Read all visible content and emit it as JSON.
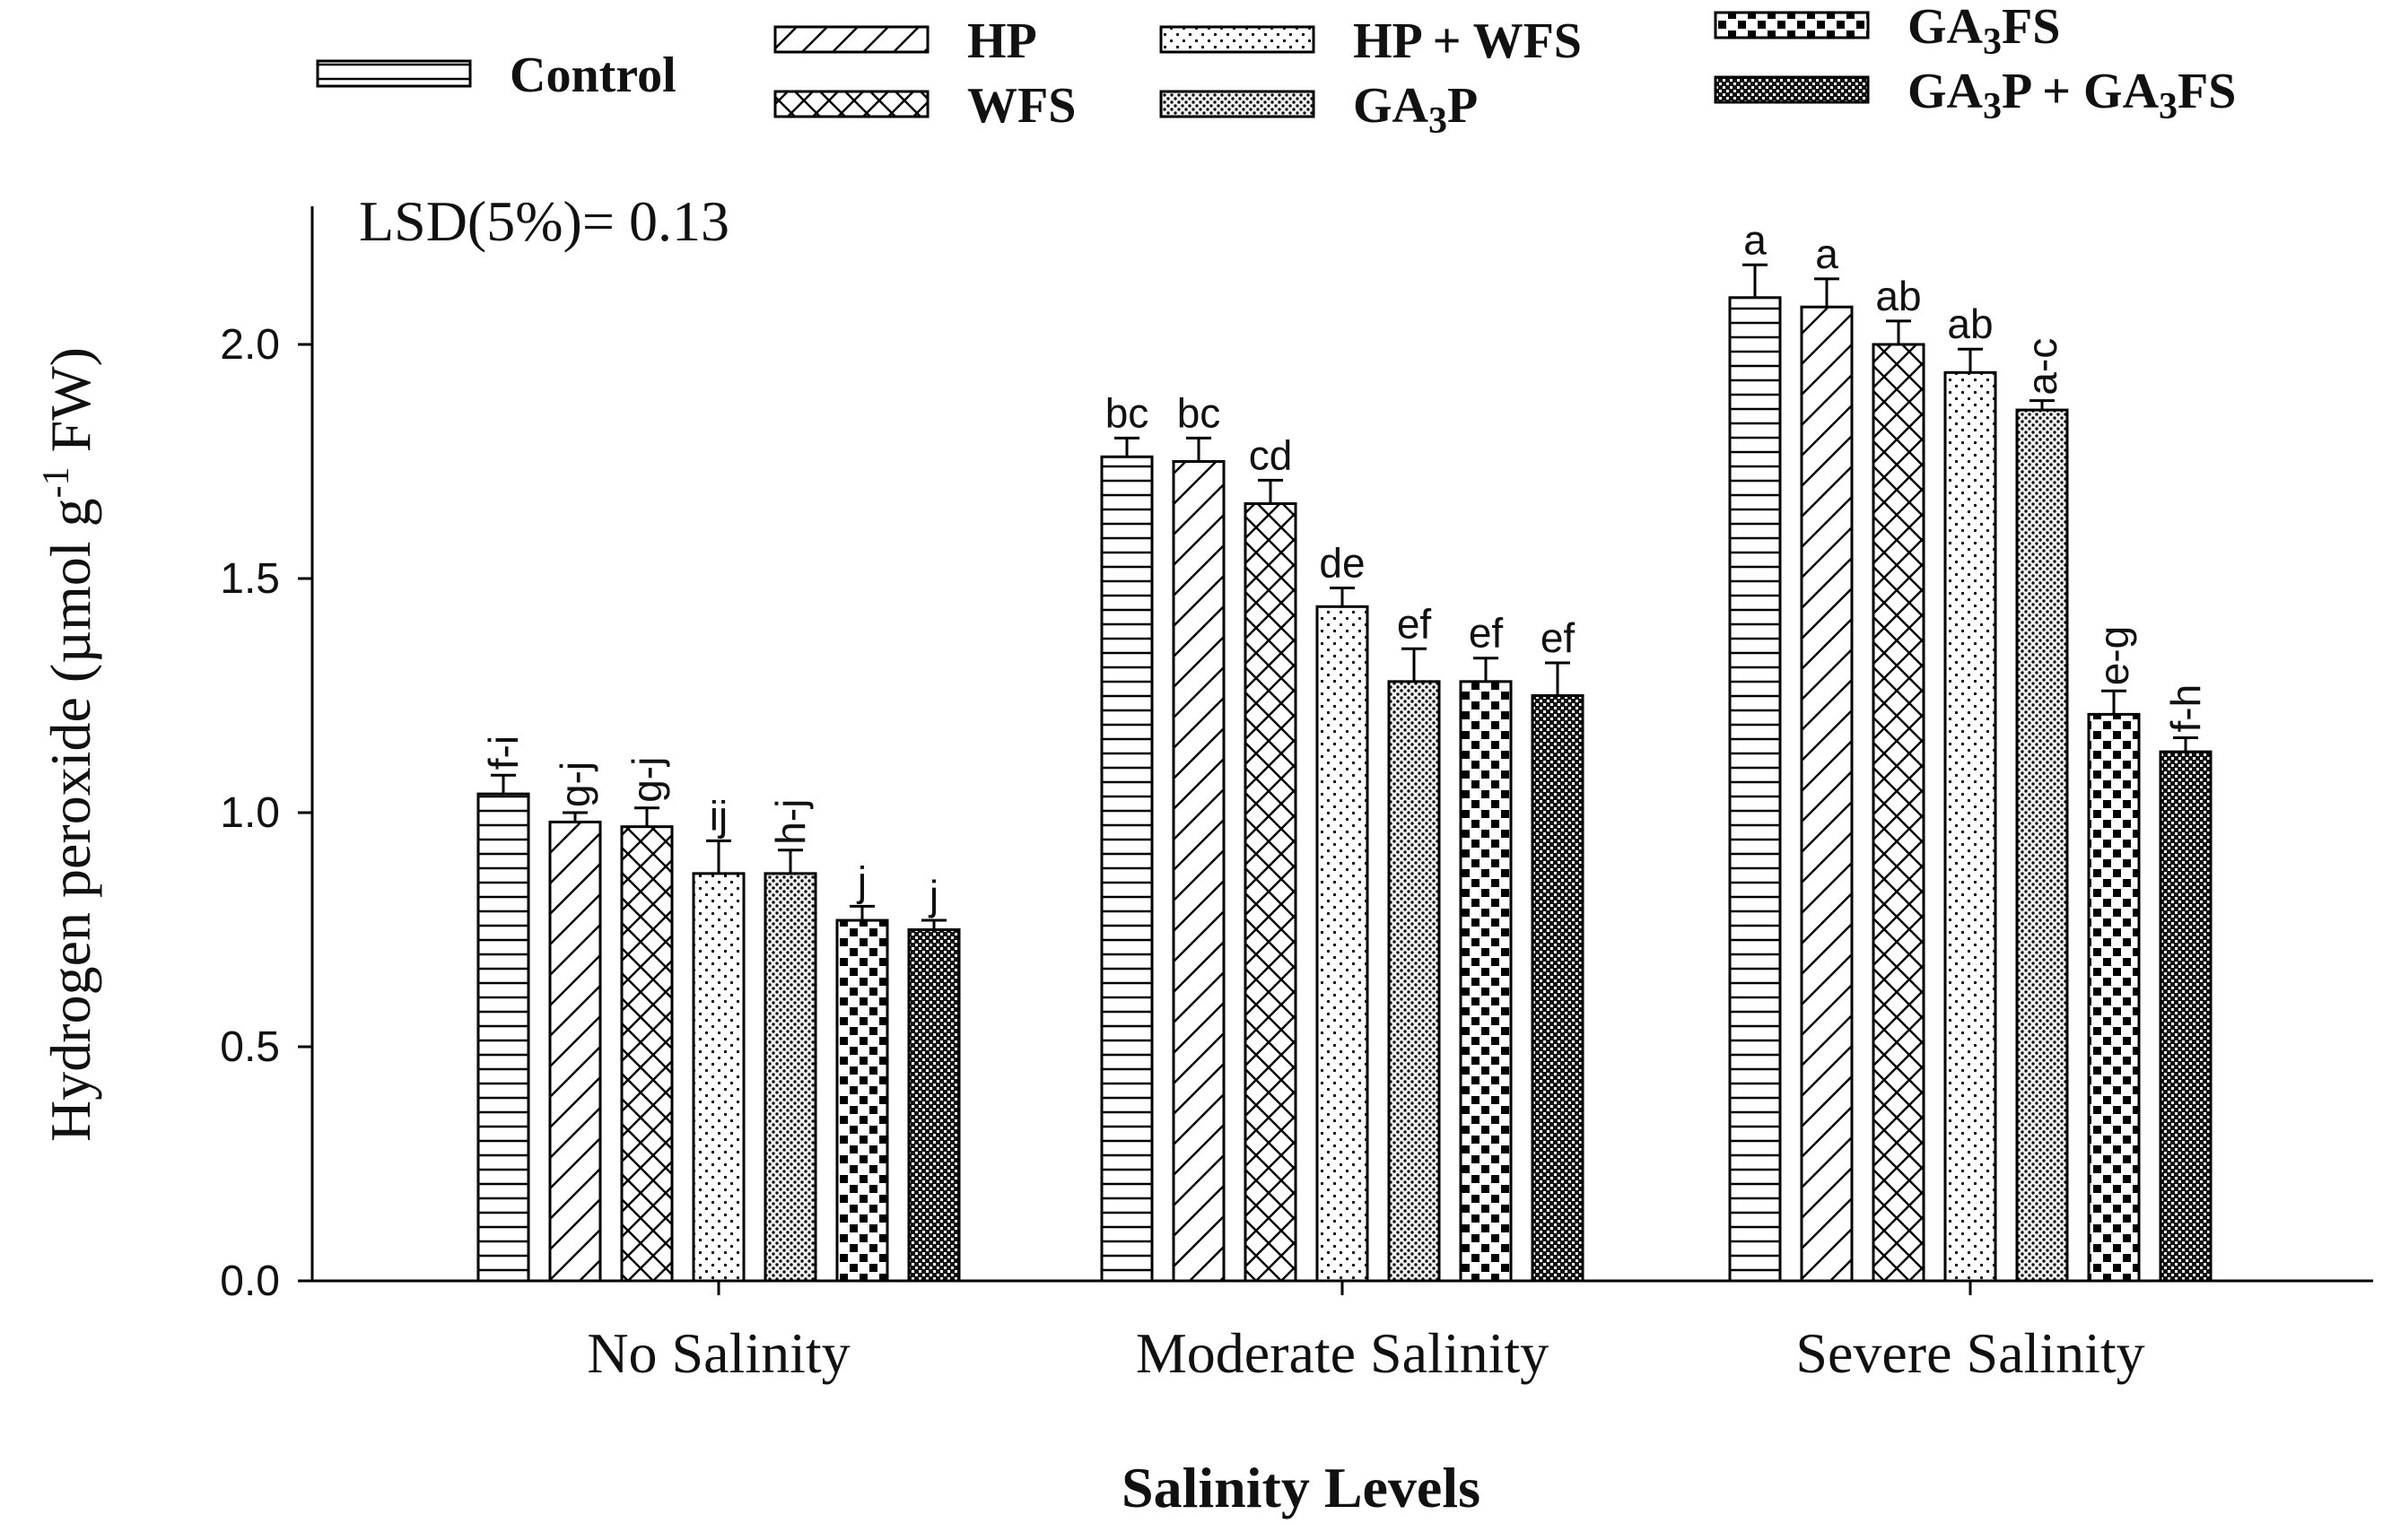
{
  "chart_data": {
    "type": "bar",
    "title": "",
    "annotation": "LSD(5%)= 0.13",
    "xlabel": "Salinity Levels",
    "ylabel": "Hydrogen peroxide (µmol g-1 FW)",
    "ylabel_parts": {
      "main": "Hydrogen peroxide (µmol g",
      "sup": "-1",
      "tail": " FW)"
    },
    "ylim": [
      0,
      2.2
    ],
    "yticks": [
      0.0,
      0.5,
      1.0,
      1.5,
      2.0
    ],
    "ytick_labels": [
      "0.0",
      "0.5",
      "1.0",
      "1.5",
      "2.0"
    ],
    "categories": [
      "No Salinity",
      "Moderate Salinity",
      "Severe Salinity"
    ],
    "series": [
      {
        "name": "Control",
        "legend": {
          "main": "Control",
          "parts": []
        },
        "pattern": "hstripes",
        "values": [
          1.04,
          1.76,
          2.1
        ],
        "errors": [
          0.04,
          0.04,
          0.07
        ],
        "letters": [
          "f-i",
          "bc",
          "a"
        ]
      },
      {
        "name": "HP",
        "legend": {
          "main": "HP",
          "parts": []
        },
        "pattern": "diag",
        "values": [
          0.98,
          1.75,
          2.08
        ],
        "errors": [
          0.02,
          0.05,
          0.06
        ],
        "letters": [
          "g-j",
          "bc",
          "a"
        ]
      },
      {
        "name": "WFS",
        "legend": {
          "main": "WFS",
          "parts": []
        },
        "pattern": "cross",
        "values": [
          0.97,
          1.66,
          2.0
        ],
        "errors": [
          0.04,
          0.05,
          0.05
        ],
        "letters": [
          "g-j",
          "cd",
          "ab"
        ]
      },
      {
        "name": "HP + WFS",
        "legend": {
          "main": "HP + WFS",
          "parts": []
        },
        "pattern": "dots",
        "values": [
          0.87,
          1.44,
          1.94
        ],
        "errors": [
          0.07,
          0.04,
          0.05
        ],
        "letters": [
          "ij",
          "de",
          "ab"
        ]
      },
      {
        "name": "GA3P",
        "legend": {
          "main": "GA3P",
          "parts": [
            [
              "GA",
              0
            ],
            [
              "3",
              1
            ],
            [
              "P",
              0
            ]
          ]
        },
        "pattern": "fine",
        "values": [
          0.87,
          1.28,
          1.86
        ],
        "errors": [
          0.05,
          0.07,
          0.02
        ],
        "letters": [
          "h-j",
          "ef",
          "a-c"
        ]
      },
      {
        "name": "GA3FS",
        "legend": {
          "main": "GA3FS",
          "parts": [
            [
              "GA",
              0
            ],
            [
              "3",
              1
            ],
            [
              "FS",
              0
            ]
          ]
        },
        "pattern": "bigdots",
        "values": [
          0.77,
          1.28,
          1.21
        ],
        "errors": [
          0.03,
          0.05,
          0.05
        ],
        "letters": [
          "j",
          "ef",
          "e-g"
        ]
      },
      {
        "name": "GA3P + GA3FS",
        "legend": {
          "main": "GA3P + GA3FS",
          "parts": [
            [
              "GA",
              0
            ],
            [
              "3",
              1
            ],
            [
              "P + GA",
              0
            ],
            [
              "3",
              1
            ],
            [
              "FS",
              0
            ]
          ]
        },
        "pattern": "dense",
        "values": [
          0.75,
          1.25,
          1.13
        ],
        "errors": [
          0.02,
          0.07,
          0.03
        ],
        "letters": [
          "j",
          "ef",
          "f-h"
        ]
      }
    ],
    "legend_position": "top",
    "grid": false
  }
}
